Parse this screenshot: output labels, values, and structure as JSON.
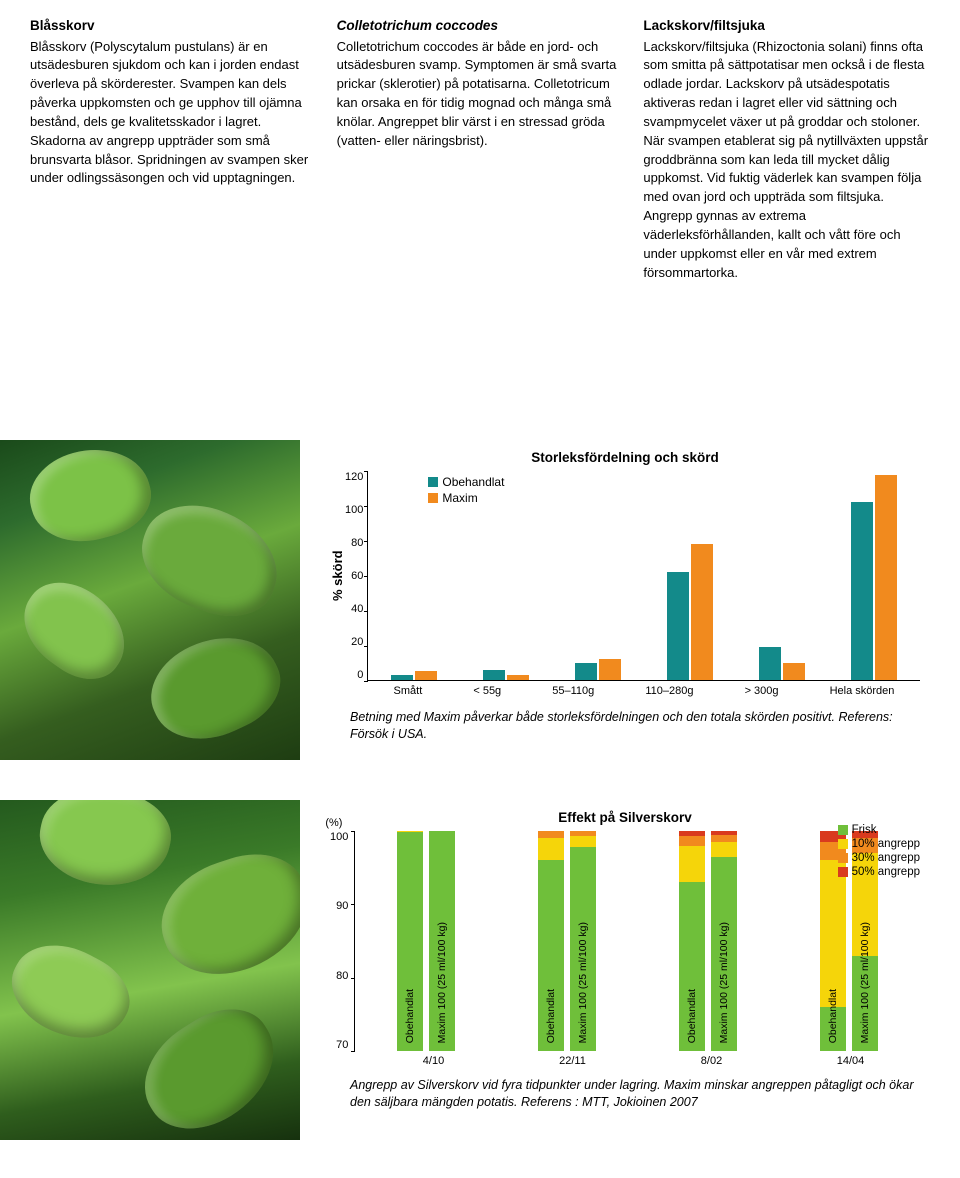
{
  "columns": [
    {
      "title": "Blåsskorv",
      "title_italic": false,
      "body": "Blåsskorv (Polyscytalum pustulans) är en utsädesburen sjukdom och kan i jorden endast överleva på skörderester. Svampen kan dels påverka uppkomsten och ge upphov till ojämna bestånd, dels ge kvalitetsskador i lagret. Skadorna av angrepp uppträder som små brunsvarta blåsor. Spridningen av svampen sker under odlingssäsongen och vid upptagningen."
    },
    {
      "title": "Colletotrichum coccodes",
      "title_italic": true,
      "body": "Colletotrichum coccodes är både en jord- och utsädesburen svamp. Symptomen är små svarta prickar (sklerotier) på potatisarna. Colletotricum kan orsaka en för tidig mognad och många små knölar. Angreppet blir värst i en stressad gröda (vatten- eller näringsbrist)."
    },
    {
      "title": "Lackskorv/filtsjuka",
      "title_italic": false,
      "body": "Lackskorv/filtsjuka (Rhizoctonia solani) finns ofta som smitta på sättpotatisar men också i de flesta odlade jordar. Lackskorv på utsädespotatis aktiveras redan i lagret eller vid sättning och svampmycelet växer ut på groddar och stoloner. När svampen etablerat sig på nytillväxten uppstår groddbränna som kan leda till mycket dålig uppkomst. Vid fuktig väderlek kan svampen följa med ovan jord och uppträda som filtsjuka. Angrepp gynnas av extrema väderleksförhållanden, kallt och vått före och under uppkomst eller en vår med extrem försommartorka."
    }
  ],
  "chart1": {
    "title": "Storleksfördelning och skörd",
    "y_label": "% skörd",
    "y_ticks": [
      "120",
      "100",
      "80",
      "60",
      "40",
      "20",
      "0"
    ],
    "y_max": 120,
    "legend": [
      {
        "label": "Obehandlat",
        "color": "#138a8a"
      },
      {
        "label": "Maxim",
        "color": "#f18a1e"
      }
    ],
    "categories": [
      "Smått",
      "< 55g",
      "55–110g",
      "110–280g",
      "> 300g",
      "Hela skörden"
    ],
    "series": {
      "obehandlat": [
        3,
        6,
        10,
        62,
        19,
        102
      ],
      "maxim": [
        5,
        3,
        12,
        78,
        10,
        117
      ]
    },
    "colors": {
      "obehandlat": "#138a8a",
      "maxim": "#f18a1e"
    },
    "caption": "Betning med Maxim påverkar både storleksfördelningen och den totala skörden positivt. Referens: Försök i USA."
  },
  "chart2": {
    "title": "Effekt på Silverskorv",
    "y_unit": "(%)",
    "y_ticks": [
      "100",
      "90",
      "80",
      "70"
    ],
    "y_min": 70,
    "y_max": 100,
    "legend": [
      {
        "label": "Frisk",
        "color": "#6fbf3a"
      },
      {
        "label": "10% angrepp",
        "color": "#f5d50a"
      },
      {
        "label": "30% angrepp",
        "color": "#f18a1e"
      },
      {
        "label": "50% angrepp",
        "color": "#d93a1e"
      }
    ],
    "groups": [
      {
        "x": "4/10",
        "bars": [
          {
            "label": "Obehandlat",
            "segments": [
              {
                "c": "#6fbf3a",
                "v": 29.8
              },
              {
                "c": "#f5d50a",
                "v": 0.2
              }
            ]
          },
          {
            "label": "Maxim 100 (25 ml/100 kg)",
            "segments": [
              {
                "c": "#6fbf3a",
                "v": 30
              }
            ]
          }
        ]
      },
      {
        "x": "22/11",
        "bars": [
          {
            "label": "Obehandlat",
            "segments": [
              {
                "c": "#6fbf3a",
                "v": 26
              },
              {
                "c": "#f5d50a",
                "v": 3
              },
              {
                "c": "#f18a1e",
                "v": 1
              }
            ]
          },
          {
            "label": "Maxim 100 (25 ml/100 kg)",
            "segments": [
              {
                "c": "#6fbf3a",
                "v": 27.8
              },
              {
                "c": "#f5d50a",
                "v": 1.5
              },
              {
                "c": "#f18a1e",
                "v": 0.7
              }
            ]
          }
        ]
      },
      {
        "x": "8/02",
        "bars": [
          {
            "label": "Obehandlat",
            "segments": [
              {
                "c": "#6fbf3a",
                "v": 23
              },
              {
                "c": "#f5d50a",
                "v": 5
              },
              {
                "c": "#f18a1e",
                "v": 1.3
              },
              {
                "c": "#d93a1e",
                "v": 0.7
              }
            ]
          },
          {
            "label": "Maxim 100 (25 ml/100 kg)",
            "segments": [
              {
                "c": "#6fbf3a",
                "v": 26.5
              },
              {
                "c": "#f5d50a",
                "v": 2
              },
              {
                "c": "#f18a1e",
                "v": 1
              },
              {
                "c": "#d93a1e",
                "v": 0.5
              }
            ]
          }
        ]
      },
      {
        "x": "14/04",
        "bars": [
          {
            "label": "Obehandlat",
            "segments": [
              {
                "c": "#6fbf3a",
                "v": 6
              },
              {
                "c": "#f5d50a",
                "v": 20
              },
              {
                "c": "#f18a1e",
                "v": 2.5
              },
              {
                "c": "#d93a1e",
                "v": 1.5
              }
            ]
          },
          {
            "label": "Maxim 100 (25 ml/100 kg)",
            "segments": [
              {
                "c": "#6fbf3a",
                "v": 13
              },
              {
                "c": "#f5d50a",
                "v": 14
              },
              {
                "c": "#f18a1e",
                "v": 2
              },
              {
                "c": "#d93a1e",
                "v": 1
              }
            ]
          }
        ]
      }
    ],
    "caption": "Angrepp av Silverskorv vid fyra tidpunkter under lagring. Maxim minskar angreppen påtagligt och ökar den säljbara mängden potatis. Referens : MTT, Jokioinen 2007"
  }
}
